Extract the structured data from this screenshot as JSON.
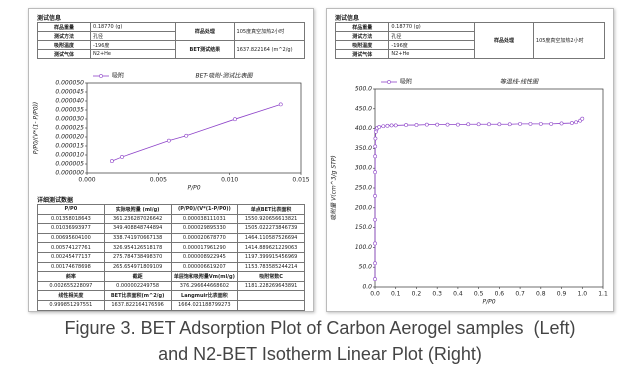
{
  "left_panel": {
    "info_title": "测试信息",
    "info": {
      "rows": [
        [
          "样品重量",
          "0.18770 (g)"
        ],
        [
          "测试方法",
          "孔径"
        ],
        [
          "吸附温度",
          "-196度"
        ],
        [
          "测试气体",
          "N2+He"
        ]
      ],
      "side": [
        [
          "样品处理",
          "105度真空加热2小时"
        ],
        [
          "BET测试结果",
          "1637.822164 (m^2/g)"
        ]
      ]
    },
    "detail_title": "详细测试数据",
    "detail": {
      "header": [
        "P/P0",
        "实际吸附量 (ml/g)",
        "(P/P0)/(V*(1-P/P0))",
        "单点BET比表面积"
      ],
      "rows": [
        [
          "0.01358018643",
          "361.236287026642",
          "0.000038111031",
          "1550.920656613821"
        ],
        [
          "0.01036993977",
          "349.408848744894",
          "0.000029895330",
          "1505.022273846739"
        ],
        [
          "0.00695604100",
          "338.741970667138",
          "0.000020678770",
          "1464.110587526694"
        ],
        [
          "0.00574127761",
          "326.954126518178",
          "0.000017961290",
          "1414.889621229063"
        ],
        [
          "0.00245477137",
          "275.784738498370",
          "0.000008922945",
          "1197.399915456969"
        ],
        [
          "0.00174678698",
          "265.654971809109",
          "0.000006619207",
          "1153.783585244214"
        ]
      ],
      "summary": [
        [
          "斜率",
          "截距",
          "单层饱和吸附量Vm(ml/g)",
          "吸附常数C"
        ],
        [
          "0.002655228097",
          "0.000002249758",
          "376.296644668602",
          "1181.228269643891"
        ],
        [
          "线性相关度",
          "BET比表面积(m^2/g)",
          "Langmuir比表面积"
        ],
        [
          "0.999851297551",
          "1637.822164176596",
          "1664.021188799273"
        ]
      ]
    }
  },
  "right_panel": {
    "info_title": "测试信息",
    "info": {
      "rows": [
        [
          "样品重量",
          "0.18770 (g)"
        ],
        [
          "测试方法",
          "孔径"
        ],
        [
          "吸附温度",
          "-196度"
        ],
        [
          "测试气体",
          "N2+He"
        ]
      ],
      "side": [
        [
          "样品处理",
          "105度真空加热2小时"
        ]
      ]
    }
  },
  "chart_data": [
    {
      "type": "line",
      "title": "BET-吸附-测试比表图",
      "x_label": "P/P0",
      "y_label": "P/P0/(V*(1- P/P0))",
      "x": [
        0.00174678698,
        0.00245477137,
        0.00574127761,
        0.006956041,
        0.01036993977,
        0.01358018643
      ],
      "series": [
        {
          "name": "吸附",
          "color": "#8e44c9",
          "values": [
            6.619207e-06,
            8.922945e-06,
            1.796129e-05,
            2.067877e-05,
            2.989533e-05,
            3.8111031e-05
          ]
        }
      ],
      "xlim": [
        0,
        0.015
      ],
      "xticks": [
        {
          "value": 0,
          "label": "0.000"
        },
        {
          "value": 0.005,
          "label": "0.005"
        },
        {
          "value": 0.01,
          "label": "0.010"
        },
        {
          "value": 0.015,
          "label": "0.015"
        }
      ],
      "ylim": [
        0,
        5e-05
      ],
      "yticks": [
        {
          "value": 0,
          "label": "0.000000"
        },
        {
          "value": 5e-06,
          "label": "0.000005"
        },
        {
          "value": 1e-05,
          "label": "0.000010"
        },
        {
          "value": 1.5e-05,
          "label": "0.000015"
        },
        {
          "value": 2e-05,
          "label": "0.000020"
        },
        {
          "value": 2.5e-05,
          "label": "0.000025"
        },
        {
          "value": 3e-05,
          "label": "0.000030"
        },
        {
          "value": 3.5e-05,
          "label": "0.000035"
        },
        {
          "value": 4e-05,
          "label": "0.000040"
        },
        {
          "value": 4.5e-05,
          "label": "0.000045"
        },
        {
          "value": 5e-05,
          "label": "0.000050"
        }
      ]
    },
    {
      "type": "line",
      "title": "等温线-线性图",
      "x_label": "P/P0",
      "y_label": "吸附量 V(cm^3/g STP)",
      "x": [
        1e-05,
        3e-05,
        6e-05,
        0.0001,
        0.0002,
        0.0004,
        0.0007,
        0.001,
        0.002,
        0.004,
        0.007,
        0.01,
        0.02,
        0.04,
        0.06,
        0.08,
        0.1,
        0.15,
        0.2,
        0.25,
        0.3,
        0.35,
        0.4,
        0.45,
        0.5,
        0.55,
        0.6,
        0.65,
        0.7,
        0.75,
        0.8,
        0.85,
        0.9,
        0.95,
        0.97,
        0.99,
        1.0
      ],
      "series": [
        {
          "name": "吸附",
          "color": "#8e44c9",
          "values": [
            20,
            60,
            110,
            170,
            230,
            290,
            330,
            355,
            375,
            392,
            398,
            401,
            404,
            406,
            407,
            408,
            408,
            409,
            409,
            410,
            410,
            410,
            410,
            411,
            411,
            411,
            411,
            411,
            412,
            412,
            412,
            412,
            413,
            414,
            416,
            420,
            425
          ]
        }
      ],
      "xlim": [
        0,
        1.1
      ],
      "xticks": [
        {
          "value": 0,
          "label": "0.0"
        },
        0.1,
        0.2,
        0.3,
        0.4,
        0.5,
        0.6,
        0.7,
        0.8,
        0.9,
        {
          "value": 1,
          "label": "1.0"
        },
        1.1
      ],
      "ylim": [
        0,
        500
      ],
      "yticks": [
        {
          "value": 0,
          "label": "0.0"
        },
        {
          "value": 50,
          "label": "50.0"
        },
        {
          "value": 100,
          "label": "100.0"
        },
        {
          "value": 150,
          "label": "150.0"
        },
        {
          "value": 200,
          "label": "200.0"
        },
        {
          "value": 250,
          "label": "250.0"
        },
        {
          "value": 300,
          "label": "300.0"
        },
        {
          "value": 350,
          "label": "350.0"
        },
        {
          "value": 400,
          "label": "400.0"
        },
        {
          "value": 450,
          "label": "450.0"
        },
        {
          "value": 500,
          "label": "500.0"
        }
      ]
    }
  ],
  "caption": [
    "Figure 3. BET Adsorption Plot of Carbon Aerogel samples  (Left)",
    "and N2-BET Isotherm Linear Plot (Right)"
  ]
}
